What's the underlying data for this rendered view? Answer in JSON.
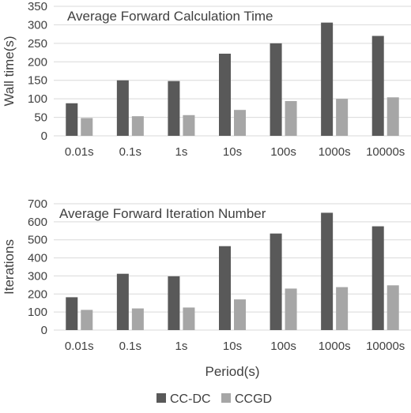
{
  "chart_data": [
    {
      "type": "bar",
      "title": "Average Forward Calculation Time",
      "xlabel": "",
      "ylabel": "Wall time(s)",
      "ylim": [
        0,
        350
      ],
      "yticks": [
        0,
        50,
        100,
        150,
        200,
        250,
        300,
        350
      ],
      "grid": true,
      "categories": [
        "0.01s",
        "0.1s",
        "1s",
        "10s",
        "100s",
        "1000s",
        "10000s"
      ],
      "series": [
        {
          "name": "CC-DC",
          "values": [
            88,
            150,
            148,
            222,
            250,
            306,
            270
          ]
        },
        {
          "name": "CCGD",
          "values": [
            48,
            53,
            56,
            70,
            94,
            100,
            104
          ]
        }
      ]
    },
    {
      "type": "bar",
      "title": "Average Forward Iteration Number",
      "xlabel": "Period(s)",
      "ylabel": "Iterations",
      "ylim": [
        0,
        700
      ],
      "yticks": [
        0,
        100,
        200,
        300,
        400,
        500,
        600,
        700
      ],
      "grid": true,
      "categories": [
        "0.01s",
        "0.1s",
        "1s",
        "10s",
        "100s",
        "1000s",
        "10000s"
      ],
      "series": [
        {
          "name": "CC-DC",
          "values": [
            182,
            312,
            298,
            465,
            535,
            650,
            575
          ]
        },
        {
          "name": "CCGD",
          "values": [
            112,
            120,
            125,
            170,
            230,
            238,
            248
          ]
        }
      ]
    }
  ],
  "legend": {
    "position": "bottom",
    "items": [
      {
        "label": "CC-DC",
        "color": "#595959"
      },
      {
        "label": "CCGD",
        "color": "#a6a6a6"
      }
    ]
  },
  "colors": {
    "series": [
      "#595959",
      "#a6a6a6"
    ],
    "grid": "#d9d9d9",
    "text": "#404040"
  }
}
